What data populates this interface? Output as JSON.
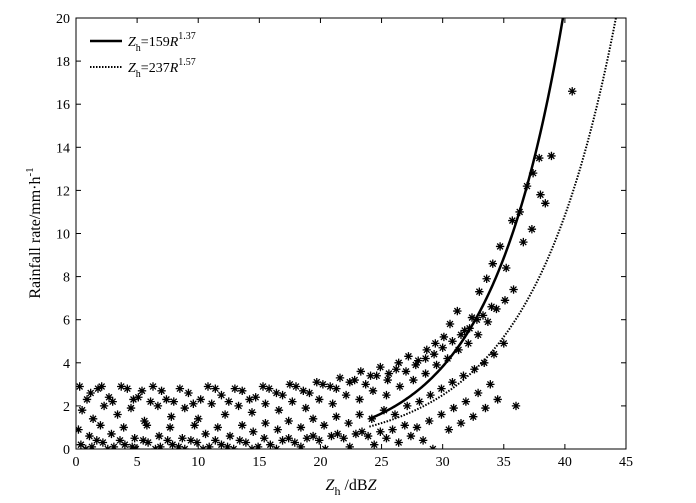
{
  "chart_data": {
    "type": "scatter",
    "xlabel": {
      "main": "Z",
      "sub": "h",
      "rest_pre": " /dB",
      "rest_italic": "Z"
    },
    "ylabel": {
      "main": "Rainfall rate/mm·h",
      "sup": "-1"
    },
    "xlim": [
      0,
      45
    ],
    "ylim": [
      0,
      20
    ],
    "xticks": [
      0,
      5,
      10,
      15,
      20,
      25,
      30,
      35,
      40,
      45
    ],
    "yticks": [
      0,
      2,
      4,
      6,
      8,
      10,
      12,
      14,
      16,
      18,
      20
    ],
    "grid": false,
    "legend_position": "top-left",
    "series": [
      {
        "type": "line",
        "style": "solid",
        "color": "#000000",
        "relation": {
          "a": 159,
          "b": 1.37
        },
        "legend": {
          "z": "Z",
          "sub": "h",
          "eq": "=159",
          "r": "R",
          "exp": "1.37"
        }
      },
      {
        "type": "line",
        "style": "dotted",
        "color": "#000000",
        "relation": {
          "a": 237,
          "b": 1.57
        },
        "legend": {
          "z": "Z",
          "sub": "h",
          "eq": "=237",
          "r": "R",
          "exp": "1.57"
        }
      },
      {
        "type": "scatter",
        "marker": "asterisk",
        "color": "#000000",
        "points": [
          [
            0.3,
            2.9
          ],
          [
            1.2,
            2.6
          ],
          [
            2.1,
            2.9
          ],
          [
            3.0,
            2.2
          ],
          [
            4.2,
            2.8
          ],
          [
            5.1,
            2.4
          ],
          [
            6.3,
            2.9
          ],
          [
            7.4,
            2.3
          ],
          [
            8.5,
            2.8
          ],
          [
            9.6,
            2.1
          ],
          [
            10.8,
            2.9
          ],
          [
            11.9,
            2.5
          ],
          [
            13.0,
            2.8
          ],
          [
            14.2,
            2.3
          ],
          [
            15.3,
            2.9
          ],
          [
            16.4,
            2.6
          ],
          [
            17.5,
            3.0
          ],
          [
            18.6,
            2.7
          ],
          [
            19.7,
            3.1
          ],
          [
            20.8,
            2.9
          ],
          [
            21.6,
            3.3
          ],
          [
            22.4,
            3.1
          ],
          [
            23.3,
            3.6
          ],
          [
            24.1,
            3.4
          ],
          [
            24.9,
            3.8
          ],
          [
            25.6,
            3.5
          ],
          [
            26.4,
            4.0
          ],
          [
            27.2,
            4.3
          ],
          [
            28.0,
            4.1
          ],
          [
            28.7,
            4.6
          ],
          [
            29.4,
            4.9
          ],
          [
            30.1,
            5.2
          ],
          [
            30.6,
            5.8
          ],
          [
            31.2,
            6.4
          ],
          [
            31.8,
            5.5
          ],
          [
            32.4,
            6.1
          ],
          [
            33.0,
            7.3
          ],
          [
            33.6,
            7.9
          ],
          [
            34.1,
            8.6
          ],
          [
            34.7,
            9.4
          ],
          [
            35.2,
            8.4
          ],
          [
            35.7,
            10.6
          ],
          [
            36.3,
            11.0
          ],
          [
            36.9,
            12.2
          ],
          [
            37.4,
            12.8
          ],
          [
            37.9,
            13.5
          ],
          [
            38.4,
            11.4
          ],
          [
            38.9,
            13.6
          ],
          [
            40.6,
            16.6
          ],
          [
            0.5,
            1.8
          ],
          [
            1.4,
            1.4
          ],
          [
            2.3,
            2.0
          ],
          [
            3.4,
            1.6
          ],
          [
            4.5,
            1.9
          ],
          [
            5.6,
            1.3
          ],
          [
            6.7,
            2.0
          ],
          [
            7.8,
            1.5
          ],
          [
            8.9,
            1.9
          ],
          [
            10.0,
            1.4
          ],
          [
            11.1,
            2.1
          ],
          [
            12.2,
            1.6
          ],
          [
            13.3,
            2.0
          ],
          [
            14.4,
            1.7
          ],
          [
            15.5,
            2.1
          ],
          [
            16.6,
            1.8
          ],
          [
            17.7,
            2.2
          ],
          [
            18.8,
            1.9
          ],
          [
            19.9,
            2.3
          ],
          [
            21.0,
            2.1
          ],
          [
            22.1,
            2.5
          ],
          [
            23.2,
            2.3
          ],
          [
            24.3,
            2.7
          ],
          [
            25.4,
            2.5
          ],
          [
            26.5,
            2.9
          ],
          [
            27.6,
            3.2
          ],
          [
            28.6,
            3.5
          ],
          [
            29.5,
            3.9
          ],
          [
            30.4,
            4.2
          ],
          [
            31.3,
            4.6
          ],
          [
            32.1,
            4.9
          ],
          [
            32.9,
            5.3
          ],
          [
            33.7,
            5.9
          ],
          [
            34.4,
            6.5
          ],
          [
            35.1,
            6.9
          ],
          [
            35.8,
            7.4
          ],
          [
            36.6,
            9.6
          ],
          [
            37.3,
            10.2
          ],
          [
            38.0,
            11.8
          ],
          [
            0.2,
            0.9
          ],
          [
            1.1,
            0.6
          ],
          [
            2.0,
            1.1
          ],
          [
            2.9,
            0.7
          ],
          [
            3.9,
            1.0
          ],
          [
            4.8,
            0.5
          ],
          [
            5.8,
            1.1
          ],
          [
            6.8,
            0.6
          ],
          [
            7.7,
            1.0
          ],
          [
            8.7,
            0.5
          ],
          [
            9.7,
            1.1
          ],
          [
            10.6,
            0.7
          ],
          [
            11.6,
            1.0
          ],
          [
            12.6,
            0.6
          ],
          [
            13.6,
            1.1
          ],
          [
            14.5,
            0.8
          ],
          [
            15.5,
            1.2
          ],
          [
            16.5,
            0.9
          ],
          [
            17.4,
            1.3
          ],
          [
            18.4,
            1.0
          ],
          [
            19.4,
            1.4
          ],
          [
            20.3,
            1.1
          ],
          [
            21.3,
            1.5
          ],
          [
            22.3,
            1.2
          ],
          [
            23.2,
            1.6
          ],
          [
            24.2,
            1.4
          ],
          [
            25.2,
            1.8
          ],
          [
            26.1,
            1.6
          ],
          [
            27.1,
            2.0
          ],
          [
            28.1,
            2.2
          ],
          [
            29.0,
            2.5
          ],
          [
            29.9,
            2.8
          ],
          [
            30.8,
            3.1
          ],
          [
            31.7,
            3.4
          ],
          [
            32.6,
            3.7
          ],
          [
            33.4,
            4.0
          ],
          [
            34.2,
            4.4
          ],
          [
            35.0,
            4.9
          ],
          [
            0.4,
            0.2
          ],
          [
            1.3,
            0.1
          ],
          [
            2.2,
            0.3
          ],
          [
            3.1,
            0.1
          ],
          [
            4.0,
            0.2
          ],
          [
            4.9,
            0.0
          ],
          [
            5.9,
            0.3
          ],
          [
            6.9,
            0.1
          ],
          [
            7.9,
            0.2
          ],
          [
            8.9,
            0.0
          ],
          [
            9.9,
            0.3
          ],
          [
            10.9,
            0.1
          ],
          [
            11.9,
            0.2
          ],
          [
            12.9,
            0.0
          ],
          [
            13.9,
            0.3
          ],
          [
            14.9,
            0.1
          ],
          [
            15.9,
            0.2
          ],
          [
            16.9,
            0.4
          ],
          [
            17.9,
            0.3
          ],
          [
            18.9,
            0.5
          ],
          [
            19.9,
            0.4
          ],
          [
            20.9,
            0.6
          ],
          [
            21.9,
            0.5
          ],
          [
            22.9,
            0.7
          ],
          [
            23.9,
            0.6
          ],
          [
            24.9,
            0.8
          ],
          [
            25.9,
            0.9
          ],
          [
            26.9,
            1.1
          ],
          [
            27.9,
            1.0
          ],
          [
            28.9,
            1.3
          ],
          [
            29.9,
            1.6
          ],
          [
            30.9,
            1.9
          ],
          [
            31.9,
            2.2
          ],
          [
            32.9,
            2.6
          ],
          [
            33.9,
            3.0
          ],
          [
            0.8,
            0.0
          ],
          [
            1.7,
            0.4
          ],
          [
            2.6,
            0.0
          ],
          [
            3.6,
            0.4
          ],
          [
            4.6,
            0.1
          ],
          [
            5.5,
            0.4
          ],
          [
            6.5,
            0.0
          ],
          [
            7.5,
            0.4
          ],
          [
            8.4,
            0.1
          ],
          [
            9.4,
            0.4
          ],
          [
            10.4,
            0.0
          ],
          [
            11.4,
            0.4
          ],
          [
            12.4,
            0.1
          ],
          [
            13.4,
            0.4
          ],
          [
            14.4,
            0.0
          ],
          [
            15.4,
            0.5
          ],
          [
            16.4,
            0.0
          ],
          [
            17.4,
            0.5
          ],
          [
            18.4,
            0.1
          ],
          [
            19.4,
            0.6
          ],
          [
            20.4,
            0.0
          ],
          [
            21.4,
            0.7
          ],
          [
            22.4,
            0.1
          ],
          [
            23.4,
            0.8
          ],
          [
            24.4,
            0.2
          ],
          [
            25.4,
            0.5
          ],
          [
            26.4,
            0.3
          ],
          [
            27.4,
            0.6
          ],
          [
            28.4,
            0.4
          ],
          [
            29.2,
            0.0
          ],
          [
            30.5,
            0.9
          ],
          [
            31.5,
            1.2
          ],
          [
            32.5,
            1.5
          ],
          [
            33.5,
            1.9
          ],
          [
            34.5,
            2.3
          ],
          [
            36.0,
            2.0
          ],
          [
            0.9,
            2.3
          ],
          [
            1.8,
            2.8
          ],
          [
            2.7,
            2.4
          ],
          [
            3.7,
            2.9
          ],
          [
            4.7,
            2.3
          ],
          [
            5.4,
            2.7
          ],
          [
            6.1,
            2.2
          ],
          [
            7.0,
            2.7
          ],
          [
            8.0,
            2.2
          ],
          [
            9.2,
            2.6
          ],
          [
            10.2,
            2.3
          ],
          [
            11.4,
            2.8
          ],
          [
            12.5,
            2.2
          ],
          [
            13.6,
            2.7
          ],
          [
            14.7,
            2.4
          ],
          [
            15.8,
            2.8
          ],
          [
            16.9,
            2.5
          ],
          [
            18.0,
            2.9
          ],
          [
            19.1,
            2.6
          ],
          [
            20.2,
            3.0
          ],
          [
            21.3,
            2.8
          ],
          [
            22.8,
            3.2
          ],
          [
            23.7,
            3.0
          ],
          [
            24.6,
            3.4
          ],
          [
            25.5,
            3.2
          ],
          [
            26.2,
            3.7
          ],
          [
            27.0,
            3.6
          ],
          [
            27.8,
            3.9
          ],
          [
            28.6,
            4.2
          ],
          [
            29.3,
            4.4
          ],
          [
            30.0,
            4.7
          ],
          [
            30.8,
            5.0
          ],
          [
            31.5,
            5.3
          ],
          [
            32.2,
            5.6
          ],
          [
            32.8,
            6.0
          ],
          [
            33.3,
            6.2
          ],
          [
            34.0,
            6.6
          ]
        ]
      }
    ]
  }
}
